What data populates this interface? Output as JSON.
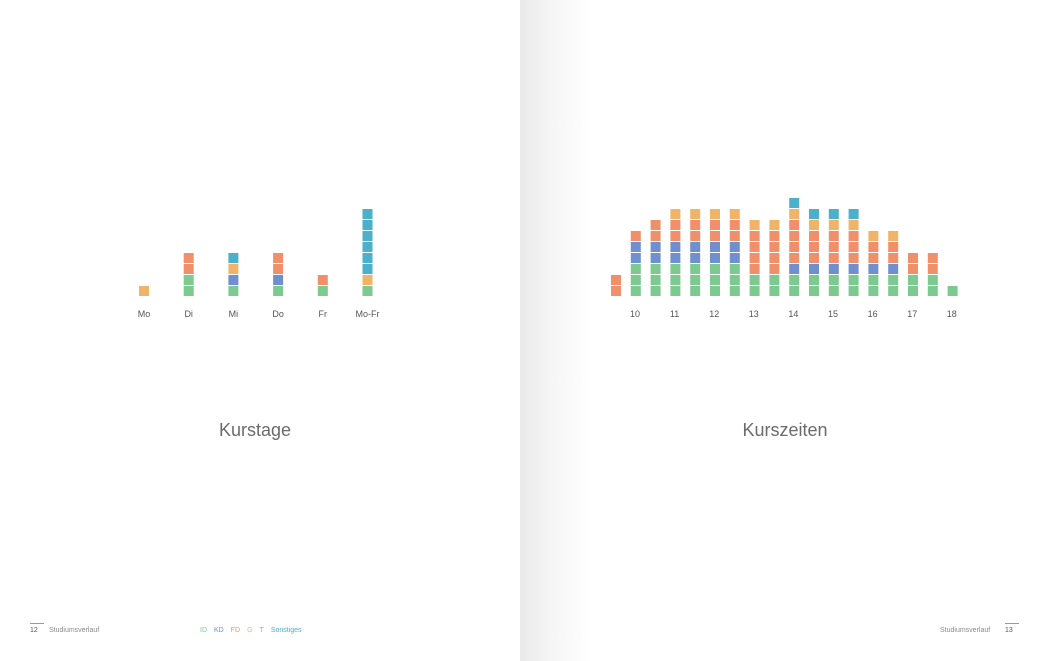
{
  "colors": {
    "ID": "#7cca8f",
    "KD": "#6f8fcf",
    "FD": "#f0906b",
    "G": "#f0b468",
    "T": "#f0906b",
    "Sonstiges": "#4ab0cc"
  },
  "left_page": {
    "number": "12",
    "section": "Studiumsverlauf"
  },
  "right_page": {
    "number": "13",
    "section": "Studiumsverlauf"
  },
  "legend": [
    {
      "label": "ID",
      "color": "#7cca8f"
    },
    {
      "label": "KD",
      "color": "#6f8fcf"
    },
    {
      "label": "FD",
      "color": "#f0906b"
    },
    {
      "label": "G",
      "color": "#f0b468"
    },
    {
      "label": "T",
      "color": "#f0906b"
    },
    {
      "label": "Sonstiges",
      "color": "#4ab0cc"
    }
  ],
  "chart_data": [
    {
      "type": "bar",
      "title": "Kurstage",
      "stacked": true,
      "unit": "courses",
      "categories": [
        "Mo",
        "Di",
        "Mi",
        "Do",
        "Fr",
        "Mo-Fr"
      ],
      "stacks": [
        [
          "G"
        ],
        [
          "ID",
          "ID",
          "FD",
          "FD"
        ],
        [
          "ID",
          "KD",
          "G",
          "Sonstiges"
        ],
        [
          "ID",
          "KD",
          "FD",
          "FD"
        ],
        [
          "ID",
          "FD"
        ],
        [
          "ID",
          "G",
          "Sonstiges",
          "Sonstiges",
          "Sonstiges",
          "Sonstiges",
          "Sonstiges",
          "Sonstiges"
        ]
      ]
    },
    {
      "type": "bar",
      "title": "Kurszeiten",
      "stacked": true,
      "unit": "courses",
      "tick_labels": [
        "10",
        "11",
        "12",
        "13",
        "14",
        "15",
        "16",
        "17",
        "18"
      ],
      "stacks": [
        [
          "FD",
          "FD"
        ],
        [
          "ID",
          "ID",
          "ID",
          "KD",
          "KD",
          "FD"
        ],
        [
          "ID",
          "ID",
          "ID",
          "KD",
          "KD",
          "FD",
          "FD"
        ],
        [
          "ID",
          "ID",
          "ID",
          "KD",
          "KD",
          "FD",
          "FD",
          "G"
        ],
        [
          "ID",
          "ID",
          "ID",
          "KD",
          "KD",
          "FD",
          "FD",
          "G"
        ],
        [
          "ID",
          "ID",
          "ID",
          "KD",
          "KD",
          "FD",
          "FD",
          "G"
        ],
        [
          "ID",
          "ID",
          "ID",
          "KD",
          "KD",
          "FD",
          "FD",
          "G"
        ],
        [
          "ID",
          "ID",
          "FD",
          "FD",
          "FD",
          "FD",
          "G"
        ],
        [
          "ID",
          "ID",
          "FD",
          "FD",
          "FD",
          "FD",
          "G"
        ],
        [
          "ID",
          "ID",
          "KD",
          "FD",
          "FD",
          "FD",
          "FD",
          "G",
          "Sonstiges"
        ],
        [
          "ID",
          "ID",
          "KD",
          "FD",
          "FD",
          "FD",
          "G",
          "Sonstiges"
        ],
        [
          "ID",
          "ID",
          "KD",
          "FD",
          "FD",
          "FD",
          "G",
          "Sonstiges"
        ],
        [
          "ID",
          "ID",
          "KD",
          "FD",
          "FD",
          "FD",
          "G",
          "Sonstiges"
        ],
        [
          "ID",
          "ID",
          "KD",
          "FD",
          "FD",
          "G"
        ],
        [
          "ID",
          "ID",
          "KD",
          "FD",
          "FD",
          "G"
        ],
        [
          "ID",
          "ID",
          "FD",
          "FD"
        ],
        [
          "ID",
          "ID",
          "FD",
          "FD"
        ],
        [
          "ID"
        ]
      ]
    }
  ]
}
